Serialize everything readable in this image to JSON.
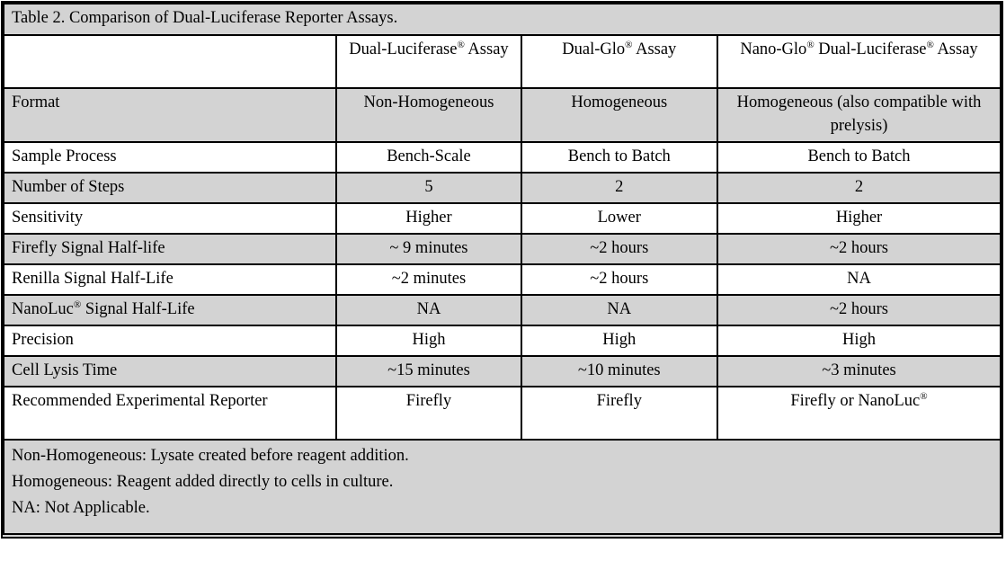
{
  "table": {
    "title": "Table 2. Comparison of Dual-Luciferase Reporter Assays.",
    "columns": [
      "",
      "Dual-Luciferase® Assay",
      "Dual-Glo® Assay",
      "Nano-Glo® Dual-Luciferase® Assay"
    ],
    "rows": [
      {
        "label": "Format",
        "values": [
          "Non-Homogeneous",
          "Homogeneous",
          "Homogeneous (also compatible with prelysis)"
        ]
      },
      {
        "label": "Sample Process",
        "values": [
          "Bench-Scale",
          "Bench to Batch",
          "Bench to Batch"
        ]
      },
      {
        "label": "Number of Steps",
        "values": [
          "5",
          "2",
          "2"
        ]
      },
      {
        "label": "Sensitivity",
        "values": [
          "Higher",
          "Lower",
          "Higher"
        ]
      },
      {
        "label": "Firefly Signal Half-life",
        "values": [
          "~ 9 minutes",
          "~2 hours",
          "~2 hours"
        ]
      },
      {
        "label": "Renilla Signal Half-Life",
        "values": [
          "~2 minutes",
          "~2 hours",
          "NA"
        ]
      },
      {
        "label": "NanoLuc® Signal Half-Life",
        "values": [
          "NA",
          "NA",
          "~2 hours"
        ]
      },
      {
        "label": "Precision",
        "values": [
          "High",
          "High",
          "High"
        ]
      },
      {
        "label": "Cell Lysis Time",
        "values": [
          "~15 minutes",
          "~10 minutes",
          "~3 minutes"
        ]
      },
      {
        "label": "Recommended Experimental Reporter",
        "values": [
          "Firefly",
          "Firefly",
          "Firefly or NanoLuc®"
        ]
      }
    ],
    "footnotes": [
      "Non-Homogeneous: Lysate created before reagent addition.",
      "Homogeneous: Reagent added directly to cells in culture.",
      "NA: Not Applicable."
    ],
    "colors": {
      "row_shading": "#d3d3d3",
      "border": "#000000",
      "text": "#000000",
      "background": "#ffffff"
    }
  }
}
